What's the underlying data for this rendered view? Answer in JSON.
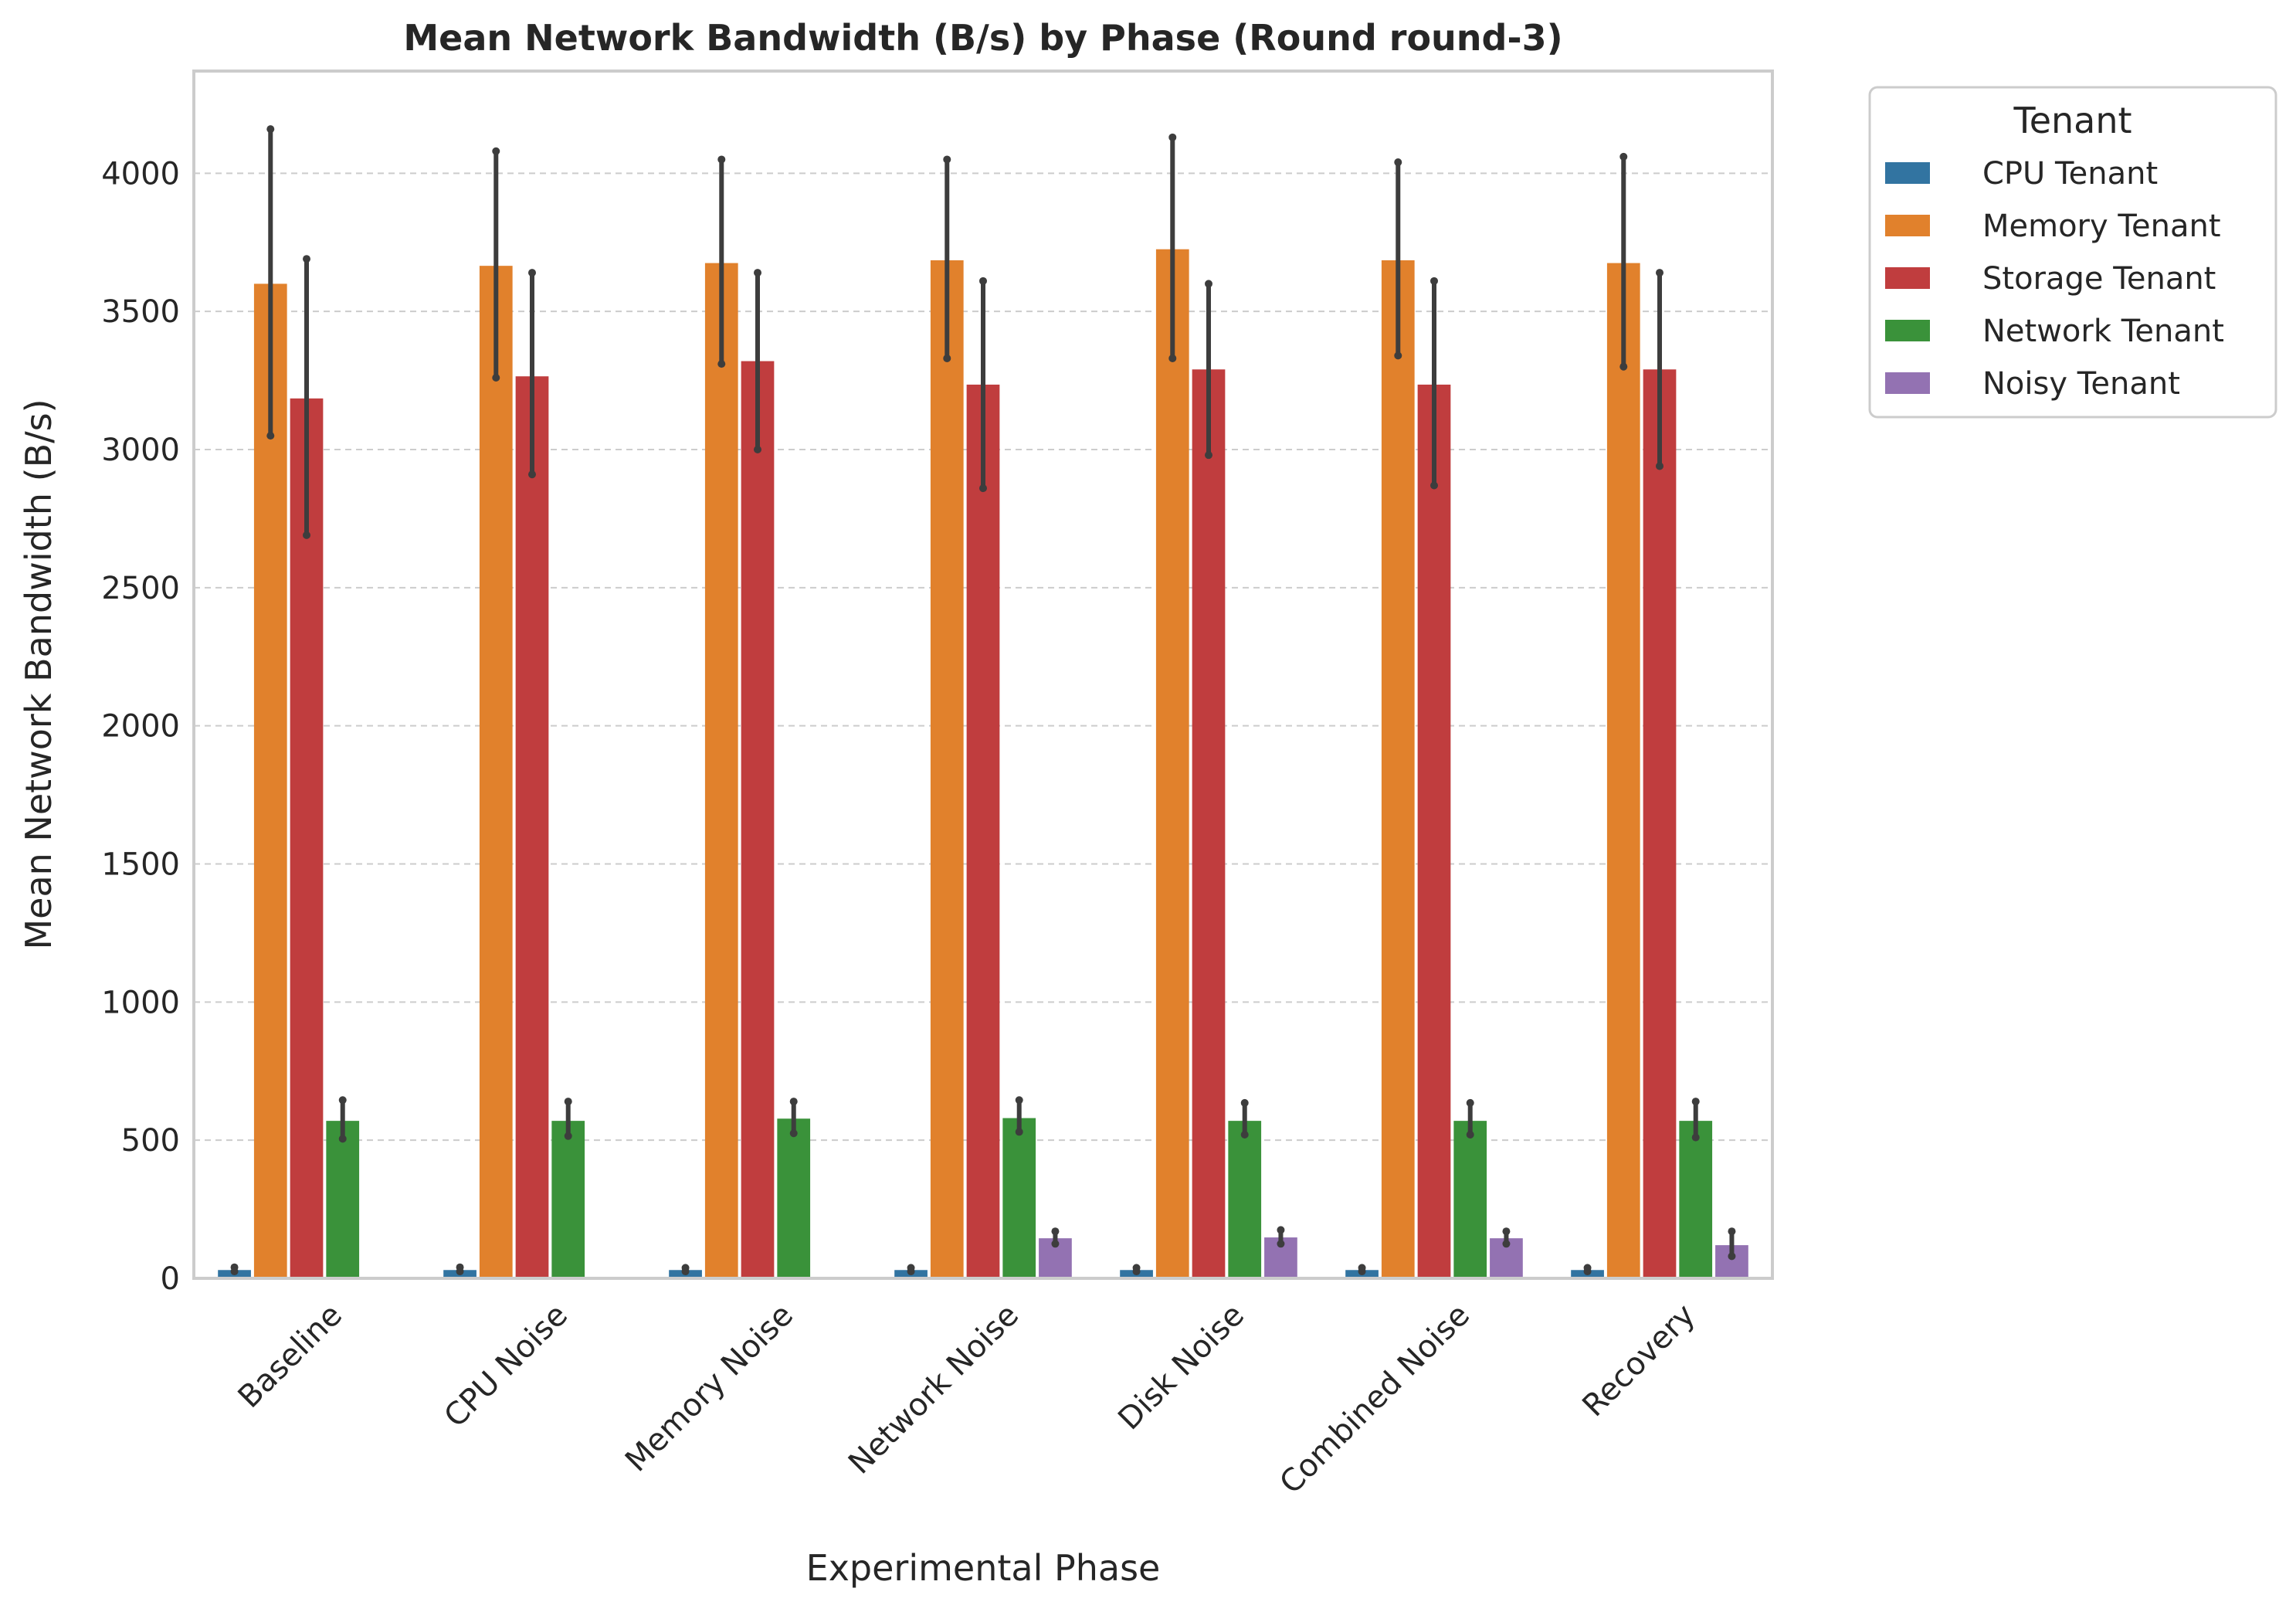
{
  "chart_data": {
    "type": "bar",
    "title": "Mean Network Bandwidth (B/s) by Phase (Round round-3)",
    "xlabel": "Experimental Phase",
    "ylabel": "Mean Network Bandwidth (B/s)",
    "ylim": [
      0,
      4370
    ],
    "yticks": [
      0,
      500,
      1000,
      1500,
      2000,
      2500,
      3000,
      3500,
      4000
    ],
    "grid": true,
    "legend_title": "Tenant",
    "legend_placement": "outside-top-right",
    "categories": [
      "Baseline",
      "CPU Noise",
      "Memory Noise",
      "Network Noise",
      "Disk Noise",
      "Combined Noise",
      "Recovery"
    ],
    "series": [
      {
        "name": "CPU Tenant",
        "color": "#3274a1",
        "values": [
          30,
          30,
          30,
          30,
          30,
          30,
          30
        ],
        "ci_low": [
          25,
          25,
          25,
          25,
          25,
          25,
          25
        ],
        "ci_high": [
          40,
          40,
          38,
          38,
          38,
          38,
          38
        ]
      },
      {
        "name": "Memory Tenant",
        "color": "#e1812c",
        "values": [
          3600,
          3665,
          3675,
          3685,
          3725,
          3685,
          3675
        ],
        "ci_low": [
          3050,
          3260,
          3310,
          3330,
          3330,
          3340,
          3300
        ],
        "ci_high": [
          4160,
          4080,
          4050,
          4050,
          4130,
          4040,
          4060
        ]
      },
      {
        "name": "Storage Tenant",
        "color": "#c03d3e",
        "values": [
          3185,
          3265,
          3320,
          3235,
          3290,
          3235,
          3290
        ],
        "ci_low": [
          2690,
          2910,
          3000,
          2860,
          2980,
          2870,
          2940
        ],
        "ci_high": [
          3690,
          3640,
          3640,
          3610,
          3600,
          3610,
          3640
        ]
      },
      {
        "name": "Network Tenant",
        "color": "#3a923a",
        "values": [
          570,
          570,
          578,
          580,
          570,
          570,
          570
        ],
        "ci_low": [
          505,
          515,
          525,
          530,
          520,
          520,
          510
        ],
        "ci_high": [
          645,
          640,
          640,
          645,
          635,
          635,
          640
        ]
      },
      {
        "name": "Noisy Tenant",
        "color": "#9372b2",
        "values": [
          0,
          0,
          0,
          145,
          148,
          145,
          120
        ],
        "ci_low": [
          0,
          0,
          0,
          125,
          125,
          125,
          80
        ],
        "ci_high": [
          0,
          0,
          0,
          170,
          175,
          170,
          170
        ]
      }
    ]
  }
}
